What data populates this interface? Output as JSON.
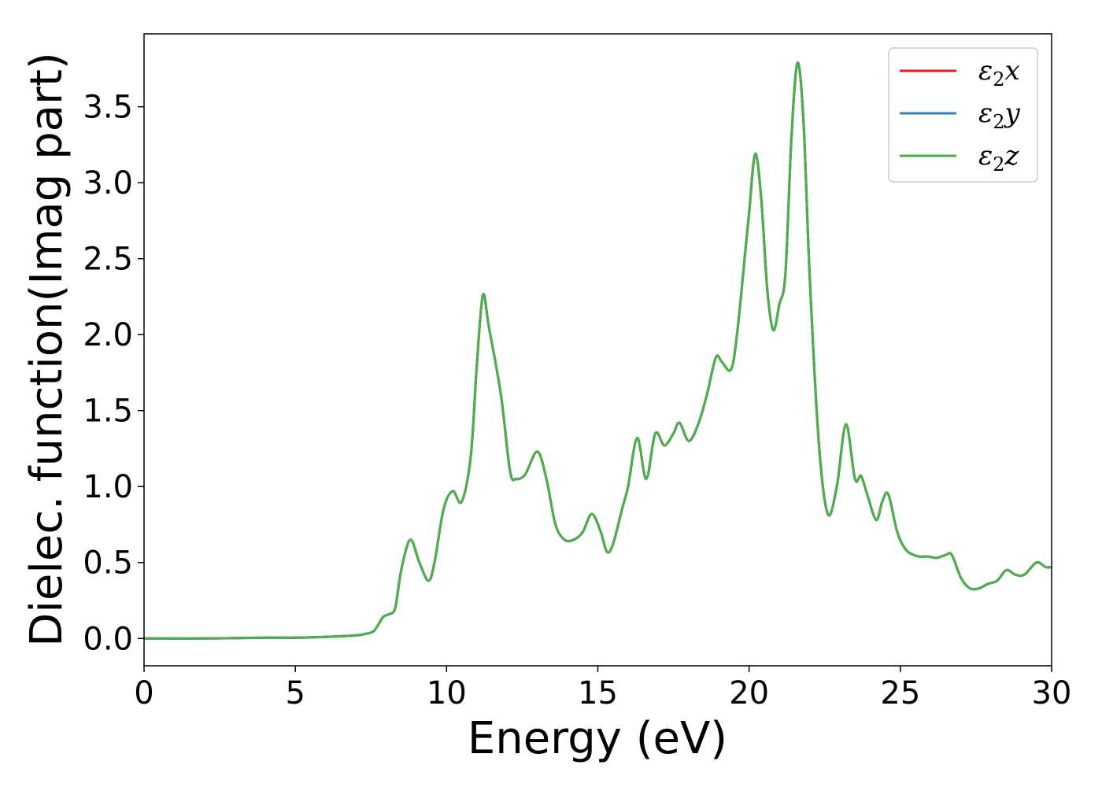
{
  "chart_data": {
    "type": "line",
    "title": "",
    "xlabel": "Energy (eV)",
    "ylabel": "Dielec. function(Imag part)",
    "xlim": [
      0,
      30
    ],
    "ylim": [
      -0.18,
      3.98
    ],
    "xticks": [
      0,
      5,
      10,
      15,
      20,
      25,
      30
    ],
    "yticks": [
      0.0,
      0.5,
      1.0,
      1.5,
      2.0,
      2.5,
      3.0,
      3.5
    ],
    "xtick_labels": [
      "0",
      "5",
      "10",
      "15",
      "20",
      "25",
      "30"
    ],
    "ytick_labels": [
      "0.0",
      "0.5",
      "1.0",
      "1.5",
      "2.0",
      "2.5",
      "3.0",
      "3.5"
    ],
    "grid": false,
    "legend": {
      "placement": "top-right"
    },
    "series": [
      {
        "name": "x",
        "label_prefix": "ε",
        "label_sub": "2",
        "label_var": "x",
        "color": "#e41a1c"
      },
      {
        "name": "y",
        "label_prefix": "ε",
        "label_sub": "2",
        "label_var": "y",
        "color": "#377eb8"
      },
      {
        "name": "z",
        "label_prefix": "ε",
        "label_sub": "2",
        "label_var": "z",
        "color": "#4daf4a"
      }
    ],
    "x": [
      0,
      2,
      4,
      5,
      6,
      7,
      7.3,
      7.6,
      7.9,
      8.1,
      8.3,
      8.5,
      8.8,
      9.1,
      9.4,
      9.6,
      9.9,
      10.2,
      10.5,
      10.8,
      11.0,
      11.2,
      11.4,
      11.8,
      12.1,
      12.3,
      12.6,
      13.0,
      13.3,
      13.6,
      13.9,
      14.2,
      14.5,
      14.8,
      15.1,
      15.3,
      15.5,
      15.8,
      16.0,
      16.3,
      16.6,
      16.9,
      17.2,
      17.5,
      17.7,
      18.0,
      18.3,
      18.6,
      18.9,
      19.1,
      19.4,
      19.6,
      19.9,
      20.0,
      20.2,
      20.4,
      20.6,
      20.8,
      21.0,
      21.2,
      21.4,
      21.6,
      21.8,
      22.0,
      22.3,
      22.6,
      22.9,
      23.2,
      23.5,
      23.7,
      23.9,
      24.2,
      24.4,
      24.6,
      24.9,
      25.2,
      25.6,
      25.9,
      26.2,
      26.5,
      26.7,
      27.0,
      27.3,
      27.6,
      27.9,
      28.2,
      28.5,
      28.8,
      29.1,
      29.5,
      29.8,
      30.0
    ],
    "values": [
      0.0,
      0.0,
      0.005,
      0.005,
      0.01,
      0.02,
      0.03,
      0.05,
      0.14,
      0.16,
      0.2,
      0.45,
      0.65,
      0.5,
      0.38,
      0.5,
      0.85,
      0.97,
      0.9,
      1.2,
      1.8,
      2.26,
      2.05,
      1.6,
      1.1,
      1.05,
      1.08,
      1.23,
      1.05,
      0.75,
      0.65,
      0.65,
      0.7,
      0.82,
      0.7,
      0.57,
      0.62,
      0.85,
      1.0,
      1.32,
      1.05,
      1.35,
      1.27,
      1.35,
      1.42,
      1.3,
      1.4,
      1.6,
      1.85,
      1.82,
      1.77,
      2.0,
      2.6,
      2.8,
      3.19,
      2.9,
      2.3,
      2.03,
      2.2,
      2.4,
      3.3,
      3.79,
      3.4,
      2.4,
      1.3,
      0.82,
      1.0,
      1.41,
      1.05,
      1.07,
      0.95,
      0.78,
      0.9,
      0.95,
      0.7,
      0.58,
      0.54,
      0.54,
      0.53,
      0.55,
      0.55,
      0.4,
      0.33,
      0.33,
      0.36,
      0.38,
      0.45,
      0.42,
      0.42,
      0.5,
      0.47,
      0.47
    ]
  }
}
